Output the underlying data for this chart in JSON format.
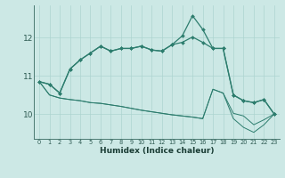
{
  "xlabel": "Humidex (Indice chaleur)",
  "bg_color": "#cce8e5",
  "line_color": "#2d7d6e",
  "grid_color": "#add4d0",
  "x_values": [
    0,
    1,
    2,
    3,
    4,
    5,
    6,
    7,
    8,
    9,
    10,
    11,
    12,
    13,
    14,
    15,
    16,
    17,
    18,
    19,
    20,
    21,
    22,
    23
  ],
  "line1": [
    10.85,
    10.78,
    10.55,
    11.18,
    11.42,
    11.6,
    11.78,
    11.65,
    11.72,
    11.72,
    11.78,
    11.68,
    11.65,
    11.82,
    12.05,
    12.58,
    12.22,
    11.72,
    11.72,
    10.5,
    10.35,
    10.3,
    10.38,
    10.0
  ],
  "line2": [
    10.85,
    10.78,
    10.55,
    11.18,
    11.42,
    11.6,
    11.78,
    11.65,
    11.72,
    11.72,
    11.78,
    11.68,
    11.65,
    11.82,
    11.88,
    12.02,
    11.88,
    11.72,
    11.72,
    10.5,
    10.35,
    10.3,
    10.38,
    10.0
  ],
  "line3": [
    10.85,
    10.5,
    10.42,
    10.38,
    10.35,
    10.3,
    10.28,
    10.24,
    10.2,
    10.15,
    10.1,
    10.06,
    10.02,
    9.98,
    9.95,
    9.92,
    9.88,
    10.65,
    10.55,
    10.02,
    9.95,
    9.72,
    9.85,
    10.0
  ],
  "line4": [
    10.85,
    10.5,
    10.42,
    10.38,
    10.35,
    10.3,
    10.28,
    10.24,
    10.2,
    10.15,
    10.1,
    10.06,
    10.02,
    9.98,
    9.95,
    9.92,
    9.88,
    10.65,
    10.55,
    9.88,
    9.65,
    9.52,
    9.72,
    10.0
  ],
  "ylim": [
    9.35,
    12.85
  ],
  "yticks": [
    10,
    11,
    12
  ],
  "xticks": [
    0,
    1,
    2,
    3,
    4,
    5,
    6,
    7,
    8,
    9,
    10,
    11,
    12,
    13,
    14,
    15,
    16,
    17,
    18,
    19,
    20,
    21,
    22,
    23
  ]
}
